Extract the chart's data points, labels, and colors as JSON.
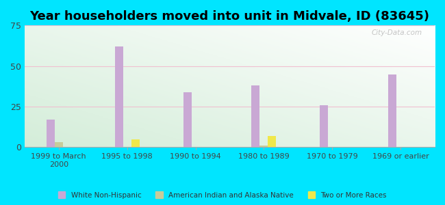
{
  "title": "Year householders moved into unit in Midvale, ID (83645)",
  "categories": [
    "1999 to March\n2000",
    "1995 to 1998",
    "1990 to 1994",
    "1980 to 1989",
    "1970 to 1979",
    "1969 or earlier"
  ],
  "white_non_hispanic": [
    17,
    62,
    34,
    38,
    26,
    45
  ],
  "american_indian": [
    3,
    0,
    0,
    1,
    0,
    0
  ],
  "two_or_more": [
    0,
    5,
    0,
    7,
    0,
    0
  ],
  "bar_width": 0.12,
  "ylim": [
    0,
    75
  ],
  "yticks": [
    0,
    25,
    50,
    75
  ],
  "color_white": "#c9a8d4",
  "color_indian": "#c8cc9a",
  "color_two": "#f0e84a",
  "background_fig": "#00e5ff",
  "title_fontsize": 13,
  "legend_labels": [
    "White Non-Hispanic",
    "American Indian and Alaska Native",
    "Two or More Races"
  ],
  "watermark": "City-Data.com"
}
